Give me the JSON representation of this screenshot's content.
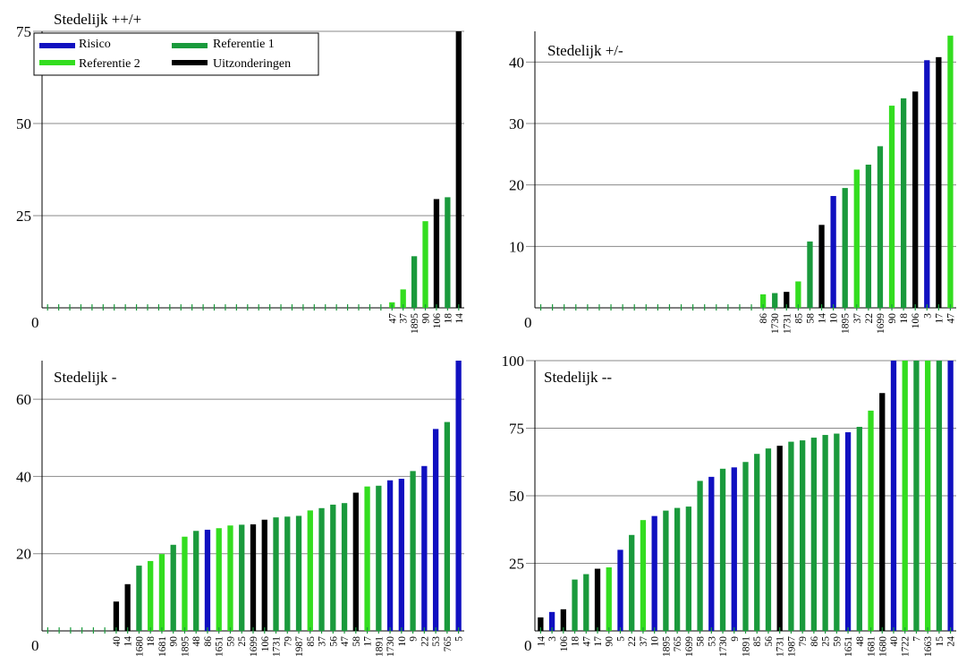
{
  "colors": {
    "Risico": "#1010c0",
    "Referentie 1": "#1a9a3c",
    "Referentie 2": "#33dd1f",
    "Uitzonderingen": "#000000"
  },
  "legend": [
    {
      "label": "Risico",
      "group": "Risico"
    },
    {
      "label": "Referentie 1",
      "group": "Referentie 1"
    },
    {
      "label": "Referentie 2",
      "group": "Referentie 2"
    },
    {
      "label": "Uitzonderingen",
      "group": "Uitzonderingen"
    }
  ],
  "chart_data": [
    {
      "type": "bar",
      "title": "Stedelijk ++/+",
      "ylim": [
        0,
        75
      ],
      "yticks": [
        25,
        50,
        75
      ],
      "zero_label": "0",
      "grid": true,
      "legend_placement": "top-left",
      "bars": [
        {
          "label": "",
          "value": 0,
          "group": "Referentie 1"
        },
        {
          "label": "",
          "value": 0,
          "group": "Referentie 1"
        },
        {
          "label": "",
          "value": 0,
          "group": "Referentie 1"
        },
        {
          "label": "",
          "value": 0,
          "group": "Referentie 1"
        },
        {
          "label": "",
          "value": 0,
          "group": "Referentie 1"
        },
        {
          "label": "",
          "value": 0,
          "group": "Referentie 1"
        },
        {
          "label": "",
          "value": 0,
          "group": "Referentie 1"
        },
        {
          "label": "",
          "value": 0,
          "group": "Referentie 1"
        },
        {
          "label": "",
          "value": 0,
          "group": "Referentie 1"
        },
        {
          "label": "",
          "value": 0,
          "group": "Referentie 1"
        },
        {
          "label": "",
          "value": 0,
          "group": "Referentie 1"
        },
        {
          "label": "",
          "value": 0,
          "group": "Referentie 1"
        },
        {
          "label": "",
          "value": 0,
          "group": "Referentie 1"
        },
        {
          "label": "",
          "value": 0,
          "group": "Referentie 1"
        },
        {
          "label": "",
          "value": 0,
          "group": "Referentie 1"
        },
        {
          "label": "",
          "value": 0,
          "group": "Referentie 1"
        },
        {
          "label": "",
          "value": 0,
          "group": "Referentie 1"
        },
        {
          "label": "",
          "value": 0,
          "group": "Referentie 1"
        },
        {
          "label": "",
          "value": 0,
          "group": "Referentie 1"
        },
        {
          "label": "",
          "value": 0,
          "group": "Referentie 1"
        },
        {
          "label": "",
          "value": 0,
          "group": "Referentie 1"
        },
        {
          "label": "",
          "value": 0,
          "group": "Referentie 1"
        },
        {
          "label": "",
          "value": 0,
          "group": "Referentie 1"
        },
        {
          "label": "",
          "value": 0,
          "group": "Referentie 1"
        },
        {
          "label": "",
          "value": 0,
          "group": "Referentie 1"
        },
        {
          "label": "",
          "value": 0,
          "group": "Referentie 1"
        },
        {
          "label": "",
          "value": 0,
          "group": "Referentie 1"
        },
        {
          "label": "",
          "value": 0,
          "group": "Referentie 1"
        },
        {
          "label": "",
          "value": 0,
          "group": "Referentie 1"
        },
        {
          "label": "",
          "value": 0,
          "group": "Referentie 1"
        },
        {
          "label": "",
          "value": 0,
          "group": "Referentie 1"
        },
        {
          "label": "47",
          "value": 1.5,
          "group": "Referentie 2"
        },
        {
          "label": "37",
          "value": 5,
          "group": "Referentie 2"
        },
        {
          "label": "1895",
          "value": 14,
          "group": "Referentie 1"
        },
        {
          "label": "90",
          "value": 23.5,
          "group": "Referentie 2"
        },
        {
          "label": "106",
          "value": 29.5,
          "group": "Uitzonderingen"
        },
        {
          "label": "18",
          "value": 30,
          "group": "Referentie 1"
        },
        {
          "label": "14",
          "value": 75,
          "group": "Uitzonderingen"
        }
      ]
    },
    {
      "type": "bar",
      "title": "Stedelijk +/-",
      "ylim": [
        0,
        45
      ],
      "yticks": [
        10,
        20,
        30,
        40
      ],
      "zero_label": "0",
      "grid": true,
      "bars": [
        {
          "label": "",
          "value": 0,
          "group": "Referentie 1"
        },
        {
          "label": "",
          "value": 0,
          "group": "Referentie 1"
        },
        {
          "label": "",
          "value": 0,
          "group": "Referentie 1"
        },
        {
          "label": "",
          "value": 0,
          "group": "Referentie 1"
        },
        {
          "label": "",
          "value": 0,
          "group": "Referentie 1"
        },
        {
          "label": "",
          "value": 0,
          "group": "Referentie 1"
        },
        {
          "label": "",
          "value": 0,
          "group": "Referentie 1"
        },
        {
          "label": "",
          "value": 0,
          "group": "Referentie 1"
        },
        {
          "label": "",
          "value": 0,
          "group": "Referentie 1"
        },
        {
          "label": "",
          "value": 0,
          "group": "Referentie 1"
        },
        {
          "label": "",
          "value": 0,
          "group": "Referentie 1"
        },
        {
          "label": "",
          "value": 0,
          "group": "Referentie 1"
        },
        {
          "label": "",
          "value": 0,
          "group": "Referentie 1"
        },
        {
          "label": "",
          "value": 0,
          "group": "Referentie 1"
        },
        {
          "label": "",
          "value": 0,
          "group": "Referentie 1"
        },
        {
          "label": "",
          "value": 0,
          "group": "Referentie 1"
        },
        {
          "label": "",
          "value": 0,
          "group": "Referentie 1"
        },
        {
          "label": "",
          "value": 0,
          "group": "Referentie 1"
        },
        {
          "label": "",
          "value": 0,
          "group": "Referentie 1"
        },
        {
          "label": "86",
          "value": 2.2,
          "group": "Referentie 2"
        },
        {
          "label": "1730",
          "value": 2.4,
          "group": "Referentie 1"
        },
        {
          "label": "1731",
          "value": 2.6,
          "group": "Uitzonderingen"
        },
        {
          "label": "85",
          "value": 4.3,
          "group": "Referentie 2"
        },
        {
          "label": "58",
          "value": 10.8,
          "group": "Referentie 1"
        },
        {
          "label": "14",
          "value": 13.5,
          "group": "Uitzonderingen"
        },
        {
          "label": "10",
          "value": 18.2,
          "group": "Risico"
        },
        {
          "label": "1895",
          "value": 19.5,
          "group": "Referentie 1"
        },
        {
          "label": "37",
          "value": 22.5,
          "group": "Referentie 2"
        },
        {
          "label": "22",
          "value": 23.3,
          "group": "Referentie 1"
        },
        {
          "label": "1699",
          "value": 26.3,
          "group": "Referentie 1"
        },
        {
          "label": "90",
          "value": 32.9,
          "group": "Referentie 2"
        },
        {
          "label": "18",
          "value": 34.1,
          "group": "Referentie 1"
        },
        {
          "label": "106",
          "value": 35.2,
          "group": "Uitzonderingen"
        },
        {
          "label": "3",
          "value": 40.3,
          "group": "Risico"
        },
        {
          "label": "17",
          "value": 40.8,
          "group": "Uitzonderingen"
        },
        {
          "label": "47",
          "value": 44.3,
          "group": "Referentie 2"
        }
      ]
    },
    {
      "type": "bar",
      "title": "Stedelijk -",
      "ylim": [
        0,
        70
      ],
      "yticks": [
        20,
        40,
        60
      ],
      "zero_label": "0",
      "grid": true,
      "bars": [
        {
          "label": "",
          "value": 0,
          "group": "Referentie 1"
        },
        {
          "label": "",
          "value": 0,
          "group": "Referentie 1"
        },
        {
          "label": "",
          "value": 0,
          "group": "Referentie 1"
        },
        {
          "label": "",
          "value": 0,
          "group": "Referentie 1"
        },
        {
          "label": "",
          "value": 0,
          "group": "Referentie 1"
        },
        {
          "label": "",
          "value": 0,
          "group": "Referentie 1"
        },
        {
          "label": "40",
          "value": 7.6,
          "group": "Uitzonderingen"
        },
        {
          "label": "14",
          "value": 12.1,
          "group": "Uitzonderingen"
        },
        {
          "label": "1680",
          "value": 16.9,
          "group": "Referentie 1"
        },
        {
          "label": "18",
          "value": 18.1,
          "group": "Referentie 2"
        },
        {
          "label": "1681",
          "value": 19.9,
          "group": "Referentie 2"
        },
        {
          "label": "90",
          "value": 22.3,
          "group": "Referentie 1"
        },
        {
          "label": "1895",
          "value": 24.4,
          "group": "Referentie 2"
        },
        {
          "label": "48",
          "value": 25.9,
          "group": "Referentie 1"
        },
        {
          "label": "86",
          "value": 26.2,
          "group": "Risico"
        },
        {
          "label": "1651",
          "value": 26.6,
          "group": "Referentie 2"
        },
        {
          "label": "59",
          "value": 27.3,
          "group": "Referentie 2"
        },
        {
          "label": "25",
          "value": 27.5,
          "group": "Referentie 1"
        },
        {
          "label": "1699",
          "value": 27.6,
          "group": "Uitzonderingen"
        },
        {
          "label": "106",
          "value": 28.8,
          "group": "Uitzonderingen"
        },
        {
          "label": "1731",
          "value": 29.4,
          "group": "Referentie 1"
        },
        {
          "label": "79",
          "value": 29.6,
          "group": "Referentie 1"
        },
        {
          "label": "1987",
          "value": 29.8,
          "group": "Referentie 1"
        },
        {
          "label": "85",
          "value": 31.2,
          "group": "Referentie 2"
        },
        {
          "label": "37",
          "value": 31.8,
          "group": "Referentie 1"
        },
        {
          "label": "56",
          "value": 32.7,
          "group": "Referentie 1"
        },
        {
          "label": "47",
          "value": 33.1,
          "group": "Referentie 1"
        },
        {
          "label": "58",
          "value": 35.8,
          "group": "Uitzonderingen"
        },
        {
          "label": "17",
          "value": 37.4,
          "group": "Referentie 2"
        },
        {
          "label": "1891",
          "value": 37.6,
          "group": "Referentie 1"
        },
        {
          "label": "1730",
          "value": 39.0,
          "group": "Risico"
        },
        {
          "label": "10",
          "value": 39.4,
          "group": "Risico"
        },
        {
          "label": "9",
          "value": 41.4,
          "group": "Referentie 1"
        },
        {
          "label": "22",
          "value": 42.7,
          "group": "Risico"
        },
        {
          "label": "53",
          "value": 52.3,
          "group": "Risico"
        },
        {
          "label": "765",
          "value": 54.1,
          "group": "Referentie 1"
        },
        {
          "label": "5",
          "value": 70,
          "group": "Risico"
        }
      ]
    },
    {
      "type": "bar",
      "title": "Stedelijk --",
      "ylim": [
        0,
        100
      ],
      "yticks": [
        25,
        50,
        75,
        100
      ],
      "zero_label": "0",
      "grid": true,
      "bars": [
        {
          "label": "14",
          "value": 5,
          "group": "Uitzonderingen"
        },
        {
          "label": "3",
          "value": 7,
          "group": "Risico"
        },
        {
          "label": "106",
          "value": 8,
          "group": "Uitzonderingen"
        },
        {
          "label": "18",
          "value": 19,
          "group": "Referentie 1"
        },
        {
          "label": "47",
          "value": 21,
          "group": "Referentie 1"
        },
        {
          "label": "17",
          "value": 23,
          "group": "Uitzonderingen"
        },
        {
          "label": "90",
          "value": 23.5,
          "group": "Referentie 2"
        },
        {
          "label": "5",
          "value": 30,
          "group": "Risico"
        },
        {
          "label": "22",
          "value": 35.5,
          "group": "Referentie 1"
        },
        {
          "label": "37",
          "value": 41,
          "group": "Referentie 2"
        },
        {
          "label": "10",
          "value": 42.5,
          "group": "Risico"
        },
        {
          "label": "1895",
          "value": 44.5,
          "group": "Referentie 1"
        },
        {
          "label": "765",
          "value": 45.5,
          "group": "Referentie 1"
        },
        {
          "label": "1699",
          "value": 46,
          "group": "Referentie 1"
        },
        {
          "label": "58",
          "value": 55.5,
          "group": "Referentie 1"
        },
        {
          "label": "53",
          "value": 57,
          "group": "Risico"
        },
        {
          "label": "1730",
          "value": 60,
          "group": "Referentie 1"
        },
        {
          "label": "9",
          "value": 60.5,
          "group": "Risico"
        },
        {
          "label": "1891",
          "value": 62.5,
          "group": "Referentie 1"
        },
        {
          "label": "85",
          "value": 65.5,
          "group": "Referentie 1"
        },
        {
          "label": "56",
          "value": 67.5,
          "group": "Referentie 1"
        },
        {
          "label": "1731",
          "value": 68.5,
          "group": "Uitzonderingen"
        },
        {
          "label": "1987",
          "value": 70,
          "group": "Referentie 1"
        },
        {
          "label": "79",
          "value": 70.5,
          "group": "Referentie 1"
        },
        {
          "label": "86",
          "value": 71.5,
          "group": "Referentie 1"
        },
        {
          "label": "25",
          "value": 72.5,
          "group": "Referentie 1"
        },
        {
          "label": "59",
          "value": 73,
          "group": "Referentie 1"
        },
        {
          "label": "1651",
          "value": 73.5,
          "group": "Risico"
        },
        {
          "label": "48",
          "value": 75.5,
          "group": "Referentie 1"
        },
        {
          "label": "1681",
          "value": 81.5,
          "group": "Referentie 2"
        },
        {
          "label": "1680",
          "value": 88,
          "group": "Uitzonderingen"
        },
        {
          "label": "40",
          "value": 100,
          "group": "Risico"
        },
        {
          "label": "1722",
          "value": 100,
          "group": "Referentie 2"
        },
        {
          "label": "7",
          "value": 100,
          "group": "Referentie 1"
        },
        {
          "label": "1663",
          "value": 100,
          "group": "Referentie 2"
        },
        {
          "label": "15",
          "value": 100,
          "group": "Referentie 1"
        },
        {
          "label": "24",
          "value": 100,
          "group": "Risico"
        }
      ]
    }
  ]
}
